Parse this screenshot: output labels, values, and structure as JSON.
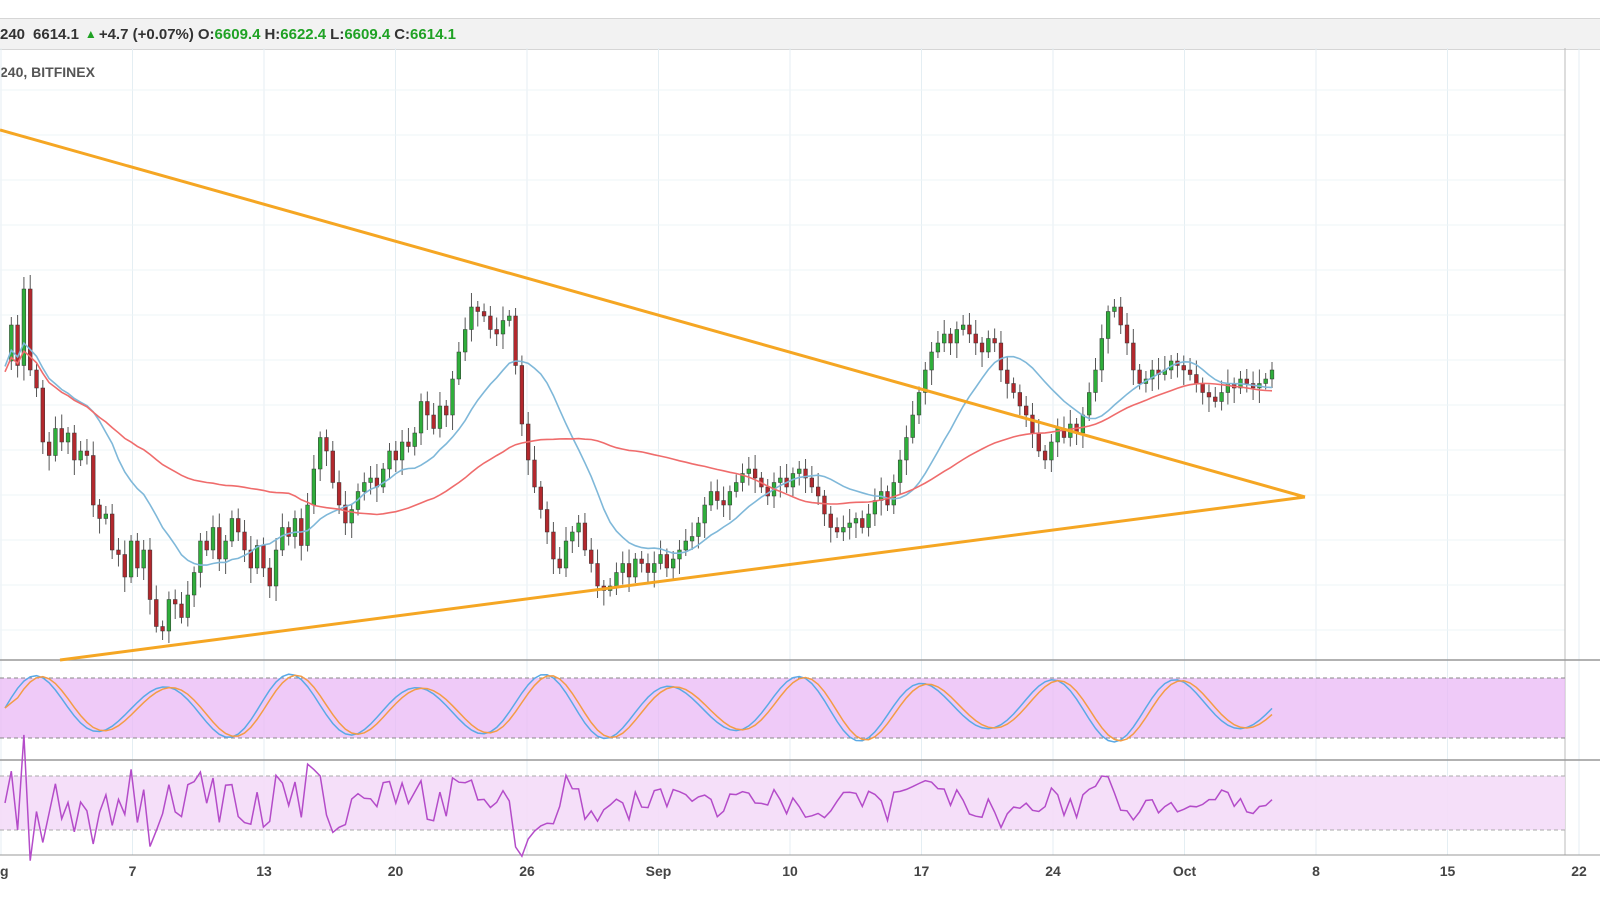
{
  "legend": {
    "interval": "240",
    "last": "6614.1",
    "change": "+4.7 (+0.07%)",
    "open_label": "O:",
    "open": "6609.4",
    "high_label": "H:",
    "high": "6622.4",
    "low_label": "L:",
    "low": "6609.4",
    "close_label": "C:",
    "close": "6614.1"
  },
  "subtitle": "240, BITFINEX",
  "chart_data": {
    "type": "candlestick",
    "symbol_source": "BITFINEX",
    "interval": "240",
    "x_tick_labels": [
      "g",
      "7",
      "13",
      "20",
      "26",
      "Sep",
      "10",
      "17",
      "24",
      "Oct",
      "8",
      "15",
      "22"
    ],
    "last_candle": {
      "open": 6609.4,
      "high": 6622.4,
      "low": 6609.4,
      "close": 6614.1
    },
    "price_path": [
      [
        0,
        0.62
      ],
      [
        1,
        0.7
      ],
      [
        2,
        0.61
      ],
      [
        3,
        0.78
      ],
      [
        4,
        0.6
      ],
      [
        5,
        0.56
      ],
      [
        6,
        0.44
      ],
      [
        7,
        0.41
      ],
      [
        8,
        0.47
      ],
      [
        9,
        0.44
      ],
      [
        10,
        0.46
      ],
      [
        11,
        0.4
      ],
      [
        12,
        0.42
      ],
      [
        13,
        0.41
      ],
      [
        14,
        0.3
      ],
      [
        15,
        0.27
      ],
      [
        16,
        0.28
      ],
      [
        17,
        0.2
      ],
      [
        18,
        0.19
      ],
      [
        19,
        0.14
      ],
      [
        20,
        0.22
      ],
      [
        21,
        0.16
      ],
      [
        22,
        0.2
      ],
      [
        23,
        0.09
      ],
      [
        24,
        0.03
      ],
      [
        25,
        0.02
      ],
      [
        26,
        0.09
      ],
      [
        27,
        0.08
      ],
      [
        28,
        0.05
      ],
      [
        29,
        0.1
      ],
      [
        30,
        0.15
      ],
      [
        31,
        0.22
      ],
      [
        32,
        0.2
      ],
      [
        33,
        0.25
      ],
      [
        34,
        0.18
      ],
      [
        35,
        0.22
      ],
      [
        36,
        0.27
      ],
      [
        37,
        0.24
      ],
      [
        38,
        0.2
      ],
      [
        39,
        0.16
      ],
      [
        40,
        0.21
      ],
      [
        41,
        0.16
      ],
      [
        42,
        0.12
      ],
      [
        43,
        0.2
      ],
      [
        44,
        0.25
      ],
      [
        45,
        0.23
      ],
      [
        46,
        0.27
      ],
      [
        47,
        0.21
      ],
      [
        48,
        0.3
      ],
      [
        49,
        0.38
      ],
      [
        50,
        0.45
      ],
      [
        51,
        0.42
      ],
      [
        52,
        0.35
      ],
      [
        53,
        0.3
      ],
      [
        54,
        0.26
      ],
      [
        55,
        0.29
      ],
      [
        56,
        0.33
      ],
      [
        57,
        0.35
      ],
      [
        58,
        0.36
      ],
      [
        59,
        0.34
      ],
      [
        60,
        0.38
      ],
      [
        61,
        0.42
      ],
      [
        62,
        0.4
      ],
      [
        63,
        0.44
      ],
      [
        64,
        0.43
      ],
      [
        65,
        0.46
      ],
      [
        66,
        0.53
      ],
      [
        67,
        0.5
      ],
      [
        68,
        0.47
      ],
      [
        69,
        0.52
      ],
      [
        70,
        0.5
      ],
      [
        71,
        0.58
      ],
      [
        72,
        0.64
      ],
      [
        73,
        0.69
      ],
      [
        74,
        0.74
      ],
      [
        75,
        0.73
      ],
      [
        76,
        0.72
      ],
      [
        77,
        0.69
      ],
      [
        78,
        0.68
      ],
      [
        79,
        0.71
      ],
      [
        80,
        0.72
      ],
      [
        81,
        0.61
      ],
      [
        82,
        0.48
      ],
      [
        83,
        0.4
      ],
      [
        84,
        0.34
      ],
      [
        85,
        0.29
      ],
      [
        86,
        0.24
      ],
      [
        87,
        0.18
      ],
      [
        88,
        0.16
      ],
      [
        89,
        0.22
      ],
      [
        90,
        0.24
      ],
      [
        91,
        0.26
      ],
      [
        92,
        0.2
      ],
      [
        93,
        0.17
      ],
      [
        94,
        0.12
      ],
      [
        95,
        0.11
      ],
      [
        96,
        0.12
      ],
      [
        97,
        0.15
      ],
      [
        98,
        0.17
      ],
      [
        99,
        0.14
      ],
      [
        100,
        0.18
      ],
      [
        101,
        0.17
      ],
      [
        102,
        0.15
      ],
      [
        103,
        0.17
      ],
      [
        104,
        0.19
      ],
      [
        105,
        0.16
      ],
      [
        106,
        0.18
      ],
      [
        107,
        0.2
      ],
      [
        108,
        0.22
      ],
      [
        109,
        0.23
      ],
      [
        110,
        0.26
      ],
      [
        111,
        0.3
      ],
      [
        112,
        0.33
      ],
      [
        113,
        0.31
      ],
      [
        114,
        0.3
      ],
      [
        115,
        0.33
      ],
      [
        116,
        0.35
      ],
      [
        117,
        0.37
      ],
      [
        118,
        0.38
      ],
      [
        119,
        0.36
      ],
      [
        120,
        0.34
      ],
      [
        121,
        0.32
      ],
      [
        122,
        0.35
      ],
      [
        123,
        0.36
      ],
      [
        124,
        0.34
      ],
      [
        125,
        0.37
      ],
      [
        126,
        0.38
      ],
      [
        127,
        0.36
      ],
      [
        128,
        0.34
      ],
      [
        129,
        0.32
      ],
      [
        130,
        0.28
      ],
      [
        131,
        0.25
      ],
      [
        132,
        0.24
      ],
      [
        133,
        0.25
      ],
      [
        134,
        0.26
      ],
      [
        135,
        0.27
      ],
      [
        136,
        0.25
      ],
      [
        137,
        0.28
      ],
      [
        138,
        0.31
      ],
      [
        139,
        0.33
      ],
      [
        140,
        0.3
      ],
      [
        141,
        0.35
      ],
      [
        142,
        0.4
      ],
      [
        143,
        0.45
      ],
      [
        144,
        0.5
      ],
      [
        145,
        0.55
      ],
      [
        146,
        0.6
      ],
      [
        147,
        0.64
      ],
      [
        148,
        0.66
      ],
      [
        149,
        0.68
      ],
      [
        150,
        0.66
      ],
      [
        151,
        0.69
      ],
      [
        152,
        0.7
      ],
      [
        153,
        0.68
      ],
      [
        154,
        0.66
      ],
      [
        155,
        0.64
      ],
      [
        156,
        0.67
      ],
      [
        157,
        0.66
      ],
      [
        158,
        0.6
      ],
      [
        159,
        0.57
      ],
      [
        160,
        0.55
      ],
      [
        161,
        0.52
      ],
      [
        162,
        0.5
      ],
      [
        163,
        0.46
      ],
      [
        164,
        0.42
      ],
      [
        165,
        0.4
      ],
      [
        166,
        0.44
      ],
      [
        167,
        0.47
      ],
      [
        168,
        0.45
      ],
      [
        169,
        0.48
      ],
      [
        170,
        0.46
      ],
      [
        171,
        0.5
      ],
      [
        172,
        0.55
      ],
      [
        173,
        0.6
      ],
      [
        174,
        0.67
      ],
      [
        175,
        0.73
      ],
      [
        176,
        0.74
      ],
      [
        177,
        0.7
      ],
      [
        178,
        0.66
      ],
      [
        179,
        0.6
      ],
      [
        180,
        0.57
      ],
      [
        181,
        0.58
      ],
      [
        182,
        0.6
      ],
      [
        183,
        0.59
      ],
      [
        184,
        0.6
      ],
      [
        185,
        0.62
      ],
      [
        186,
        0.61
      ],
      [
        187,
        0.6
      ],
      [
        188,
        0.59
      ],
      [
        189,
        0.57
      ],
      [
        190,
        0.55
      ],
      [
        191,
        0.54
      ],
      [
        192,
        0.53
      ],
      [
        193,
        0.55
      ],
      [
        194,
        0.57
      ],
      [
        195,
        0.56
      ],
      [
        196,
        0.58
      ],
      [
        197,
        0.57
      ],
      [
        198,
        0.56
      ],
      [
        199,
        0.57
      ],
      [
        200,
        0.58
      ],
      [
        201,
        0.6
      ]
    ],
    "indicators": [
      "stochastic_rsi",
      "rsi"
    ]
  }
}
